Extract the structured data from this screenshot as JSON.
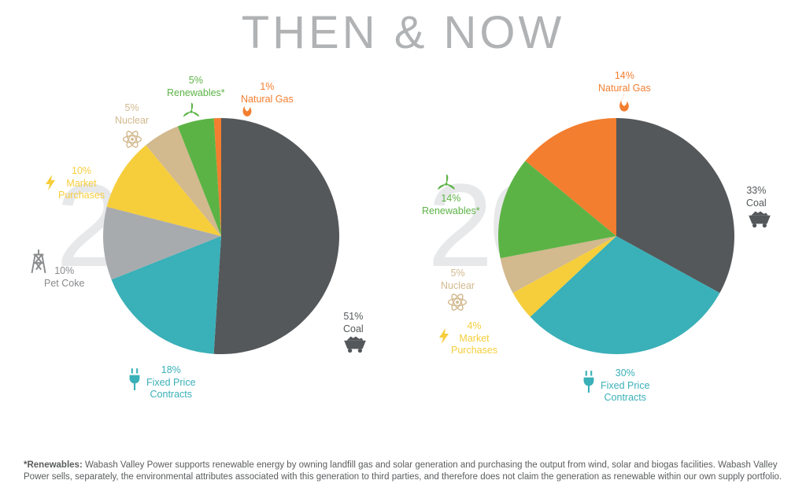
{
  "title": "THEN & NOW",
  "colors": {
    "title": "#b0b2b4",
    "year_bg": "#d5d7d9",
    "coal": "#54585a",
    "fixed_price": "#3ab0b8",
    "pet_coke": "#a8abae",
    "market": "#f6ce3c",
    "nuclear": "#d2b98e",
    "renewables": "#5cb345",
    "natural_gas": "#f37e2f",
    "icon_gray": "#888a8c"
  },
  "chart_2010": {
    "year": "2010",
    "radius": 150,
    "slices": [
      {
        "key": "natural_gas",
        "value": 1,
        "pct": "1%",
        "name": "Natural Gas",
        "label_color": "#f37e2f"
      },
      {
        "key": "coal",
        "value": 51,
        "pct": "51%",
        "name": "Coal",
        "label_color": "#54585a"
      },
      {
        "key": "fixed_price",
        "value": 18,
        "pct": "18%",
        "name": "Fixed Price\nContracts",
        "label_color": "#3ab0b8"
      },
      {
        "key": "pet_coke",
        "value": 10,
        "pct": "10%",
        "name": "Pet Coke",
        "label_color": "#888a8c"
      },
      {
        "key": "market",
        "value": 10,
        "pct": "10%",
        "name": "Market\nPurchases",
        "label_color": "#f6ce3c"
      },
      {
        "key": "nuclear",
        "value": 5,
        "pct": "5%",
        "name": "Nuclear",
        "label_color": "#d2b98e"
      },
      {
        "key": "renewables",
        "value": 5,
        "pct": "5%",
        "name": "Renewables*",
        "label_color": "#5cb345"
      }
    ]
  },
  "chart_2020": {
    "year": "2020",
    "radius": 150,
    "slices": [
      {
        "key": "natural_gas",
        "value": 14,
        "pct": "14%",
        "name": "Natural Gas",
        "label_color": "#f37e2f"
      },
      {
        "key": "coal",
        "value": 33,
        "pct": "33%",
        "name": "Coal",
        "label_color": "#54585a"
      },
      {
        "key": "fixed_price",
        "value": 30,
        "pct": "30%",
        "name": "Fixed Price\nContracts",
        "label_color": "#3ab0b8"
      },
      {
        "key": "market",
        "value": 4,
        "pct": "4%",
        "name": "Market\nPurchases",
        "label_color": "#f6ce3c"
      },
      {
        "key": "nuclear",
        "value": 5,
        "pct": "5%",
        "name": "Nuclear",
        "label_color": "#d2b98e"
      },
      {
        "key": "renewables",
        "value": 14,
        "pct": "14%",
        "name": "Renewables*",
        "label_color": "#5cb345"
      }
    ]
  },
  "footnote": {
    "bold": "*Renewables:",
    "text": " Wabash Valley Power supports renewable energy by owning landfill gas and solar generation and purchasing the output from wind, solar and biogas facilities. Wabash Valley Power sells, separately, the environmental attributes associated with this generation to third parties, and therefore does not claim the generation as renewable within our own supply portfolio."
  }
}
